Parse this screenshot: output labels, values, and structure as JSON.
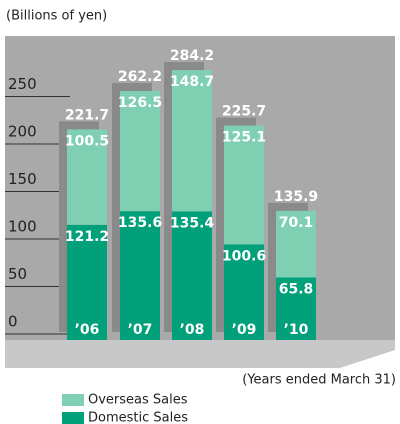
{
  "chart_data": {
    "type": "stacked_bar",
    "title": "(Billions of yen)",
    "x_label": "(Years ended March 31)",
    "categories": [
      "’06",
      "’07",
      "’08",
      "’09",
      "’10"
    ],
    "series": [
      {
        "name": "Domestic Sales",
        "color": "#00a07a",
        "values": [
          121.2,
          135.6,
          135.4,
          100.6,
          65.8
        ]
      },
      {
        "name": "Overseas Sales",
        "color": "#7fd0b2",
        "values": [
          100.5,
          126.5,
          148.7,
          125.1,
          70.1
        ]
      }
    ],
    "totals": [
      221.7,
      262.2,
      284.2,
      225.7,
      135.9
    ],
    "ylim": [
      0,
      320
    ],
    "yticks": [
      0,
      50,
      100,
      150,
      200,
      250
    ],
    "grid": true
  }
}
